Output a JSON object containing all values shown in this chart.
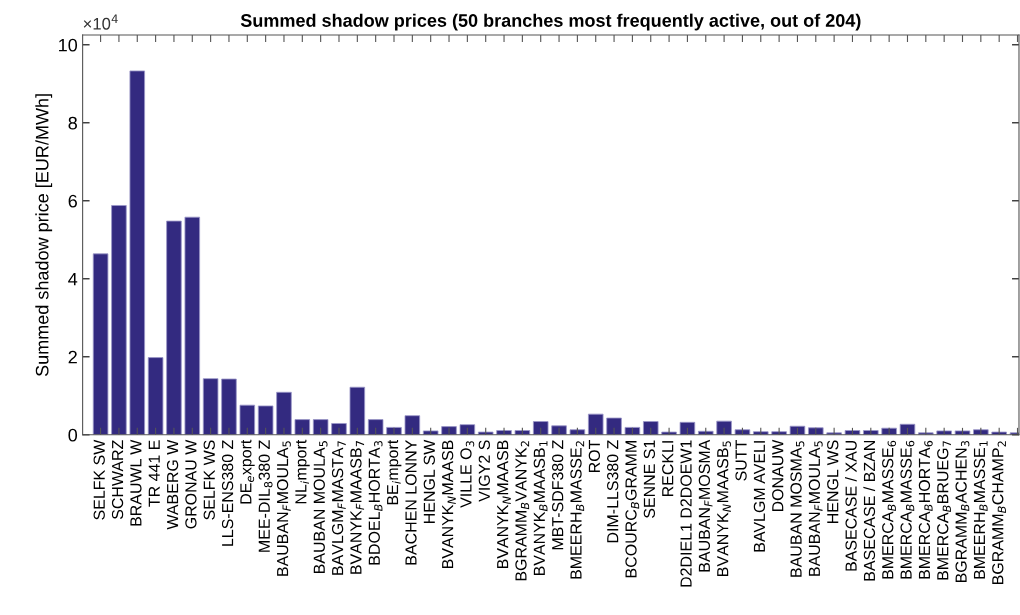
{
  "chart_data": {
    "type": "bar",
    "title": "Summed shadow prices (50 branches most frequently active, out of 204)",
    "ylabel": "Summed shadow price [EUR/MWh]",
    "annotations": [
      "×10$^{4}$"
    ],
    "categories": [
      "SELFK SW",
      "SCHWARZ",
      "BRAUWL W",
      "TR 441 E",
      "WABERG W",
      "GRONAU W",
      "SELFK WS",
      "LLS-ENS380 Z",
      "DE$_{e}$xport",
      "MEE-DIL$_{8}$380 Z",
      "BAUBAN$_{F}$MOULA$_{5}$",
      "NL$_{i}$mport",
      "BAUBAN MOULA$_{5}$",
      "BAVLGM$_{F}$MASTA$_{7}$",
      "BVANYK$_{F}$MAASB$_{7}$",
      "BDOEL$_{B}$HORTA$_{3}$",
      "BE$_{i}$mport",
      "BACHEN LONNY",
      "HENGL SW",
      "BVANYK$_{N}$MAASB",
      "VILLE O$_{3}$",
      "VIGY2 S",
      "BVANYK$_{N}$MAASB",
      "BGRAMM$_{B}$VANYK$_{2}$",
      "BVANYK$_{B}$MAASB$_{1}$",
      "MBT-SDF380 Z",
      "BMEERH$_{B}$MASSE$_{2}$",
      "ROT",
      "DIM-LLS380 Z",
      "BCOURC$_{B}$GRAMM",
      "SENNE S1",
      "RECKLI",
      "D2DIEL1 D2DOEW1",
      "BAUBAN$_{F}$MOSMA",
      "BVANYK$_{N}$MAASB$_{5}$",
      "SUTT",
      "BAVLGM AVELI",
      "DONAUW",
      "BAUBAN MOSMA$_{5}$",
      "BAUBAN$_{F}$MOULA$_{5}$",
      "HENGL WS",
      "BASECASE / XAU",
      "BASECASE / BZAN",
      "BMERCA$_{B}$MASSE$_{6}$",
      "BMERCA$_{B}$MASSE$_{6}$",
      "BMERCA$_{B}$HORTA$_{6}$",
      "BMERCA$_{B}$BRUEG$_{7}$",
      "BGRAMM$_{B}$ACHEN$_{3}$",
      "BMEERH$_{B}$MASSE$_{1}$",
      "BGRAMM$_{B}$CHAMP$_{2}$",
      null
    ],
    "values": [
      4.64,
      5.88,
      9.33,
      1.98,
      5.48,
      5.58,
      1.44,
      1.43,
      0.76,
      0.74,
      1.09,
      0.39,
      0.39,
      0.29,
      1.22,
      0.39,
      0.19,
      0.49,
      0.1,
      0.21,
      0.26,
      0.07,
      0.11,
      0.11,
      0.34,
      0.23,
      0.13,
      0.53,
      0.43,
      0.19,
      0.34,
      0.07,
      0.32,
      0.09,
      0.35,
      0.13,
      0.08,
      0.08,
      0.22,
      0.18,
      0.05,
      0.11,
      0.11,
      0.17,
      0.27,
      0.05,
      0.1,
      0.1,
      0.13,
      0.07,
      0.05
    ],
    "color": "#332a80",
    "ylim": [
      0,
      10.25
    ],
    "yticks": [
      0,
      2,
      4,
      6,
      8,
      10
    ],
    "grid": false
  }
}
